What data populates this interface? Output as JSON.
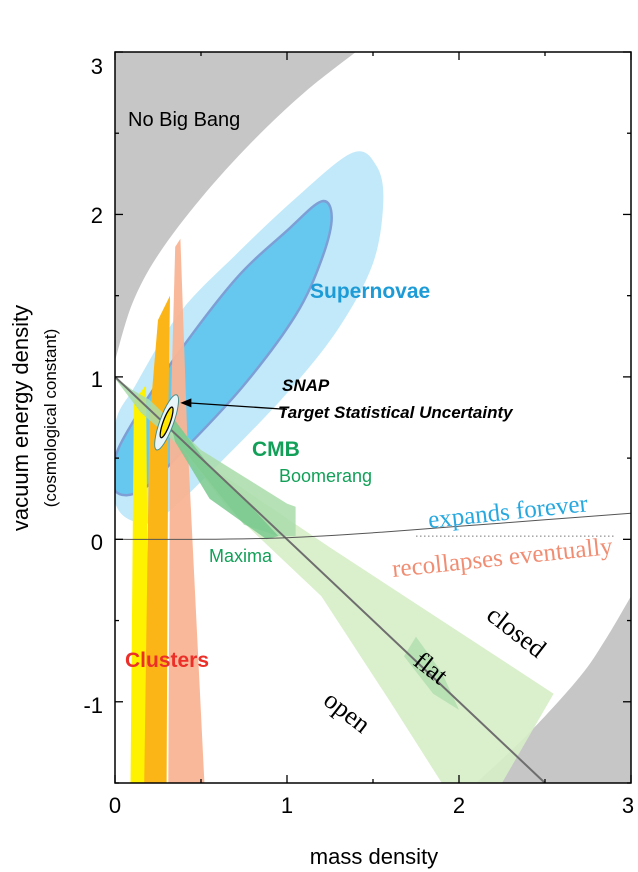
{
  "chart_data": {
    "type": "area",
    "xlabel": "mass density",
    "ylabel": "vacuum energy density",
    "ylabel_sub": "(cosmological constant)",
    "xlim": [
      0,
      3
    ],
    "ylim": [
      -1.5,
      3
    ],
    "x_ticks": [
      0,
      1,
      2,
      3
    ],
    "y_ticks": [
      -1,
      0,
      1,
      2,
      3
    ],
    "tick_labels_x": [
      "0",
      "1",
      "2",
      "3"
    ],
    "tick_labels_y": [
      "-1",
      "0",
      "1",
      "2",
      "3"
    ],
    "grid": false,
    "colors": {
      "no_big_bang": "#c6c6c6",
      "sn_outer": "#c2e9f9",
      "sn_inner": "#67c8ef",
      "sn_inner_edge": "#7d9fd6",
      "cmb_light": "#d6edc6",
      "cmb_mid": "#a9dcaa",
      "cmb_dark": "#79c98e",
      "clusters_yellow": "#fff200",
      "clusters_orange": "#fbb516",
      "clusters_salmon": "#f9b493",
      "snap_yellow": "#ffe500",
      "supernovae_text": "#1d9bd7",
      "cmb_text": "#12a058",
      "clusters_text": "#ec2f28",
      "expands_text": "#27a8df",
      "recollapses_text": "#f08d72"
    },
    "regions": {
      "no_big_bang_upper": [
        [
          0,
          1.1
        ],
        [
          0.1,
          1.45
        ],
        [
          0.25,
          1.75
        ],
        [
          0.5,
          2.1
        ],
        [
          0.8,
          2.45
        ],
        [
          1.1,
          2.75
        ],
        [
          1.4,
          3.0
        ],
        [
          0,
          3.0
        ]
      ],
      "closed_lower_right": [
        [
          2.1,
          -1.5
        ],
        [
          2.4,
          -1.2
        ],
        [
          2.7,
          -0.85
        ],
        [
          2.85,
          -0.62
        ],
        [
          3.0,
          -0.35
        ],
        [
          3.0,
          -1.5
        ]
      ],
      "supernovae_outer": [
        [
          0,
          0.23
        ],
        [
          0.15,
          0.1
        ],
        [
          0.3,
          0.16
        ],
        [
          0.6,
          0.46
        ],
        [
          1.0,
          0.9
        ],
        [
          1.3,
          1.3
        ],
        [
          1.5,
          1.7
        ],
        [
          1.56,
          2.08
        ],
        [
          1.52,
          2.3
        ],
        [
          1.38,
          2.38
        ],
        [
          1.05,
          2.1
        ],
        [
          0.7,
          1.75
        ],
        [
          0.38,
          1.4
        ],
        [
          0.12,
          0.95
        ],
        [
          0,
          0.7
        ]
      ],
      "supernovae_inner": [
        [
          0,
          0.3
        ],
        [
          0.15,
          0.3
        ],
        [
          0.4,
          0.55
        ],
        [
          0.75,
          0.95
        ],
        [
          1.05,
          1.38
        ],
        [
          1.2,
          1.72
        ],
        [
          1.26,
          1.98
        ],
        [
          1.2,
          2.08
        ],
        [
          1.0,
          1.9
        ],
        [
          0.7,
          1.6
        ],
        [
          0.35,
          1.12
        ],
        [
          0.12,
          0.75
        ],
        [
          0,
          0.5
        ]
      ],
      "cmb_boomerang": [
        [
          0,
          1.0
        ],
        [
          0.1,
          0.92
        ],
        [
          0.2,
          0.86
        ],
        [
          0.5,
          0.55
        ],
        [
          1.0,
          0.22
        ],
        [
          1.05,
          0.2
        ],
        [
          1.05,
          0.02
        ],
        [
          0.95,
          0.02
        ],
        [
          0.75,
          0.09
        ],
        [
          0.4,
          0.55
        ],
        [
          0.15,
          0.78
        ],
        [
          0,
          0.99
        ]
      ],
      "cmb_maxima": [
        [
          0.3,
          0.8
        ],
        [
          0.55,
          0.45
        ],
        [
          0.75,
          0.25
        ],
        [
          0.95,
          0.02
        ],
        [
          0.88,
          0.0
        ],
        [
          0.55,
          0.25
        ],
        [
          0.35,
          0.6
        ]
      ],
      "cmb_flat_band": [
        [
          0,
          1.0
        ],
        [
          0.12,
          0.88
        ],
        [
          0.55,
          0.45
        ],
        [
          1.25,
          -0.05
        ],
        [
          2.55,
          -0.95
        ],
        [
          2.25,
          -1.5
        ],
        [
          1.9,
          -1.5
        ],
        [
          1.6,
          -1.0
        ],
        [
          1.2,
          -0.35
        ],
        [
          0.65,
          0.2
        ],
        [
          0.25,
          0.75
        ],
        [
          0,
          0.99
        ]
      ],
      "cmb_flat_diamond": [
        [
          1.75,
          -0.6
        ],
        [
          1.9,
          -0.82
        ],
        [
          2.0,
          -1.05
        ],
        [
          1.85,
          -0.95
        ],
        [
          1.68,
          -0.72
        ]
      ],
      "clusters_yellow": [
        [
          0.09,
          -1.5
        ],
        [
          0.11,
          0.85
        ],
        [
          0.18,
          0.95
        ],
        [
          0.2,
          -1.5
        ]
      ],
      "clusters_orange": [
        [
          0.17,
          -1.5
        ],
        [
          0.2,
          0.72
        ],
        [
          0.25,
          1.35
        ],
        [
          0.32,
          1.5
        ],
        [
          0.31,
          0.75
        ],
        [
          0.3,
          -1.5
        ]
      ],
      "clusters_salmon": [
        [
          0.31,
          -1.5
        ],
        [
          0.32,
          0.6
        ],
        [
          0.35,
          1.8
        ],
        [
          0.38,
          1.85
        ],
        [
          0.42,
          0.65
        ],
        [
          0.52,
          -1.5
        ]
      ]
    },
    "lines": {
      "flat": [
        [
          0,
          1.0
        ],
        [
          2.5,
          -1.5
        ]
      ],
      "expands_boundary": [
        [
          0,
          0.0
        ],
        [
          0.5,
          0.0
        ],
        [
          1.0,
          0.01
        ],
        [
          1.5,
          0.04
        ],
        [
          2.0,
          0.08
        ],
        [
          2.5,
          0.12
        ],
        [
          3.0,
          0.16
        ]
      ],
      "recollapse_dotted": [
        [
          1.75,
          0.02
        ],
        [
          2.9,
          0.02
        ]
      ],
      "snap_arrow": [
        [
          1.0,
          0.8
        ],
        [
          0.38,
          0.84
        ]
      ]
    },
    "snap_ellipse": {
      "cx": 0.3,
      "cy": 0.72,
      "rx": 0.02,
      "ry": 0.1
    },
    "snap_outer_ellipse": {
      "cx": 0.3,
      "cy": 0.72,
      "rx": 0.04,
      "ry": 0.18
    },
    "labels": {
      "no_big_bang": "No Big Bang",
      "supernovae": "Supernovae",
      "snap_line1": "SNAP",
      "snap_line2": "Target Statistical Uncertainty",
      "cmb": "CMB",
      "boomerang": "Boomerang",
      "maxima": "Maxima",
      "clusters": "Clusters",
      "expands_forever": "expands forever",
      "recollapses_eventually": "recollapses eventually",
      "closed": "closed",
      "flat": "flat",
      "open": "open"
    }
  }
}
